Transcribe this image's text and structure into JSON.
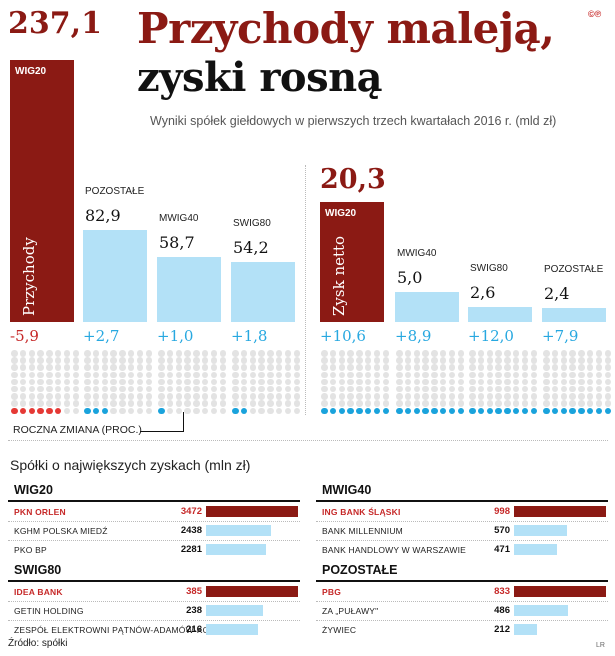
{
  "header": {
    "total_revenue": "237,1",
    "title_line1": "Przychody maleją,",
    "title_line2": "zyski rosną",
    "subtitle": "Wyniki spółek giełdowych w pierwszych trzech kwartałach 2016 r. (mld zł)",
    "license": "©℗"
  },
  "chart_data": [
    {
      "type": "bar",
      "title": "Przychody",
      "unit": "mld zł",
      "categories": [
        "WIG20",
        "POZOSTAŁE",
        "MWIG40",
        "SWIG80"
      ],
      "values": [
        237.1,
        82.9,
        58.7,
        54.2
      ],
      "value_labels": [
        "237,1",
        "82,9",
        "58,7",
        "54,2"
      ],
      "change_labels": [
        "-5,9",
        "+2,7",
        "+1,0",
        "+1,8"
      ],
      "changes_pct": [
        -5.9,
        2.7,
        1.0,
        1.8
      ],
      "ylim": [
        0,
        237.1
      ]
    },
    {
      "type": "bar",
      "title": "Zysk netto",
      "unit": "mld zł",
      "categories": [
        "WIG20",
        "MWIG40",
        "SWIG80",
        "POZOSTAŁE"
      ],
      "values": [
        20.3,
        5.0,
        2.6,
        2.4
      ],
      "value_labels": [
        "20,3",
        "5,0",
        "2,6",
        "2,4"
      ],
      "change_labels": [
        "+10,6",
        "+8,9",
        "+12,0",
        "+7,9"
      ],
      "changes_pct": [
        10.6,
        8.9,
        12.0,
        7.9
      ],
      "ylim": [
        0,
        20.3
      ]
    }
  ],
  "change_legend": "ROCZNA ZMIANA (PROC.)",
  "colors": {
    "wig20": "#8b1a14",
    "other": "#b3e1f7",
    "negative": "#e53935",
    "positive": "#1aa3dc"
  },
  "top_section": {
    "title": "Spółki o największych zyskach (mln zł)",
    "groups": [
      {
        "name": "WIG20",
        "companies": [
          {
            "name": "PKN ORLEN",
            "value": 3472,
            "label": "3472"
          },
          {
            "name": "KGHM POLSKA MIEDŹ",
            "value": 2438,
            "label": "2438"
          },
          {
            "name": "PKO BP",
            "value": 2281,
            "label": "2281"
          }
        ]
      },
      {
        "name": "MWIG40",
        "companies": [
          {
            "name": "ING BANK ŚLĄSKI",
            "value": 998,
            "label": "998"
          },
          {
            "name": "BANK MILLENNIUM",
            "value": 570,
            "label": "570"
          },
          {
            "name": "BANK HANDLOWY W WARSZAWIE",
            "value": 471,
            "label": "471"
          }
        ]
      },
      {
        "name": "SWIG80",
        "companies": [
          {
            "name": "IDEA BANK",
            "value": 385,
            "label": "385"
          },
          {
            "name": "GETIN HOLDING",
            "value": 238,
            "label": "238"
          },
          {
            "name": "ZESPÓŁ ELEKTROWNI PĄTNÓW-ADAMÓW-KONIN",
            "value": 216,
            "label": "216"
          }
        ]
      },
      {
        "name": "POZOSTAŁE",
        "companies": [
          {
            "name": "PBG",
            "value": 833,
            "label": "833"
          },
          {
            "name": "ZA „PUŁAWY\"",
            "value": 486,
            "label": "486"
          },
          {
            "name": "ŻYWIEC",
            "value": 212,
            "label": "212"
          }
        ]
      }
    ]
  },
  "footer": {
    "source": "Źródło: spółki",
    "author": "LR"
  }
}
